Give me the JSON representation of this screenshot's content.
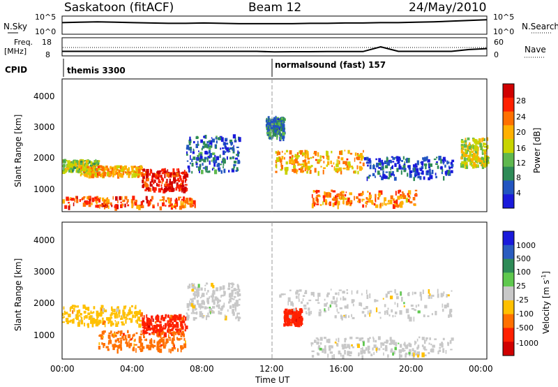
{
  "header": {
    "site": "Saskatoon (fitACF)",
    "beam": "Beam 12",
    "date": "24/May/2010"
  },
  "nsky_panel": {
    "left_label": "N.Sky",
    "left_ticks": [
      "10^5",
      "10^0"
    ],
    "right_label": "N.Search",
    "right_ticks": [
      "10^5",
      "10^0"
    ]
  },
  "freq_panel": {
    "left_label_1": "Freq.",
    "left_label_2": "[MHz]",
    "left_ticks": [
      "18",
      "8"
    ],
    "right_label": "Nave",
    "right_ticks": [
      "60",
      "0"
    ]
  },
  "cpid_panel": {
    "label": "CPID",
    "segments": [
      {
        "name": "themis 3300",
        "start_hour": 0
      },
      {
        "name": "normalsound (fast) 157",
        "start_hour": 12
      }
    ]
  },
  "x_axis": {
    "label": "Time UT",
    "ticks": [
      "00:00",
      "04:00",
      "08:00",
      "12:00",
      "16:00",
      "20:00",
      "00:00"
    ]
  },
  "power_panel": {
    "ylabel": "Slant Range [km]",
    "yticks": [
      "1000",
      "2000",
      "3000",
      "4000"
    ],
    "colorbar_label": "Power [dB]",
    "colorbar_ticks": [
      "4",
      "8",
      "12",
      "16",
      "20",
      "24",
      "28"
    ],
    "colors": [
      "#1a1adb",
      "#2255c0",
      "#2e8b57",
      "#5fb84e",
      "#c8d400",
      "#ffb000",
      "#ff7000",
      "#ff2000",
      "#d00000"
    ]
  },
  "velocity_panel": {
    "ylabel": "Slant Range [km]",
    "yticks": [
      "1000",
      "2000",
      "3000",
      "4000"
    ],
    "colorbar_label": "Velocity [m s",
    "colorbar_label_sup": "-1",
    "colorbar_label_end": "]",
    "colorbar_ticks": [
      "1000",
      "500",
      "100",
      "25",
      "-25",
      "-100",
      "-500",
      "-1000"
    ],
    "colors": [
      "#1a1adb",
      "#2a5cc0",
      "#2e8b57",
      "#5fc84e",
      "#c8c8c8",
      "#ffc000",
      "#ff7000",
      "#ff2000",
      "#d00000"
    ]
  },
  "chart_data": {
    "type": "heatmap",
    "x_range_hours": [
      0,
      24
    ],
    "y_range_km": [
      180,
      4500
    ],
    "power_echo_regions": [
      {
        "t0": 0.0,
        "t1": 2.0,
        "r0": 1500,
        "r1": 1900,
        "power_db": 14
      },
      {
        "t0": 1.0,
        "t1": 4.5,
        "r0": 1400,
        "r1": 1700,
        "power_db": 20
      },
      {
        "t0": 4.5,
        "t1": 7.0,
        "r0": 900,
        "r1": 1600,
        "power_db": 28
      },
      {
        "t0": 0.0,
        "t1": 7.5,
        "r0": 350,
        "r1": 700,
        "power_db": 24
      },
      {
        "t0": 7.0,
        "t1": 10.0,
        "r0": 1500,
        "r1": 2700,
        "power_db": 6
      },
      {
        "t0": 11.5,
        "t1": 12.5,
        "r0": 2600,
        "r1": 3300,
        "power_db": 8
      },
      {
        "t0": 12.0,
        "t1": 17.0,
        "r0": 1500,
        "r1": 2200,
        "power_db": 20
      },
      {
        "t0": 14.0,
        "t1": 20.0,
        "r0": 400,
        "r1": 900,
        "power_db": 22
      },
      {
        "t0": 17.0,
        "t1": 22.0,
        "r0": 1300,
        "r1": 2000,
        "power_db": 4
      },
      {
        "t0": 22.5,
        "t1": 24.0,
        "r0": 1700,
        "r1": 2600,
        "power_db": 16
      }
    ],
    "velocity_echo_regions": [
      {
        "t0": 0.0,
        "t1": 4.5,
        "r0": 1300,
        "r1": 1900,
        "velocity_ms": -25
      },
      {
        "t0": 4.5,
        "t1": 7.0,
        "r0": 1000,
        "r1": 1600,
        "velocity_ms": -500
      },
      {
        "t0": 2.0,
        "t1": 7.0,
        "r0": 500,
        "r1": 1100,
        "velocity_ms": -100
      },
      {
        "t0": 7.0,
        "t1": 10.0,
        "r0": 1500,
        "r1": 2600,
        "velocity_ms": 0
      },
      {
        "t0": 12.5,
        "t1": 13.5,
        "r0": 1300,
        "r1": 1800,
        "velocity_ms": -500
      },
      {
        "t0": 12.0,
        "t1": 22.0,
        "r0": 1500,
        "r1": 2400,
        "velocity_ms": 0
      },
      {
        "t0": 14.0,
        "t1": 22.0,
        "r0": 300,
        "r1": 900,
        "velocity_ms": 0
      }
    ],
    "nsky_trace": [
      3.2,
      3.3,
      3.4,
      3.3,
      3.2,
      3.1,
      3.0,
      3.0,
      3.1,
      3.0,
      2.9,
      2.9,
      2.9,
      2.9,
      3.0,
      3.0,
      3.1,
      3.1,
      3.2,
      3.2,
      3.3,
      3.4,
      3.6,
      3.8,
      4.0
    ],
    "freq_trace": [
      10.5,
      10.5,
      10.5,
      10.5,
      10.5,
      10.5,
      10.5,
      10.5,
      10.5,
      10.5,
      10.5,
      10.5,
      10.2,
      10.3,
      10.3,
      10.4,
      10.4,
      10.4,
      13.0,
      10.5,
      10.5,
      10.5,
      10.5,
      11.5,
      12.0
    ],
    "nave_dotted": 40
  }
}
